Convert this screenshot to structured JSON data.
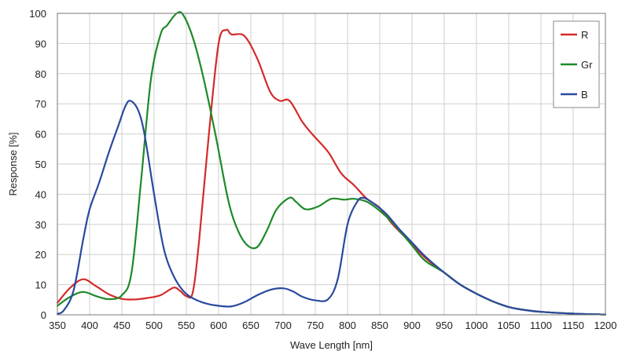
{
  "chart_data": {
    "type": "line",
    "title": "",
    "xlabel": "Wave Length [nm]",
    "ylabel": "Response  [%]",
    "xlim": [
      350,
      1200
    ],
    "ylim": [
      0,
      100
    ],
    "x_ticks": [
      350,
      400,
      450,
      500,
      550,
      600,
      650,
      700,
      750,
      800,
      850,
      900,
      950,
      1000,
      1050,
      1100,
      1150,
      1200
    ],
    "y_ticks": [
      0,
      10,
      20,
      30,
      40,
      50,
      60,
      70,
      80,
      90,
      100
    ],
    "grid": true,
    "legend_position": "top-right",
    "series": [
      {
        "name": "R",
        "color": "#d42a2a",
        "points": [
          [
            350,
            4
          ],
          [
            370,
            9
          ],
          [
            390,
            11.8
          ],
          [
            410,
            9.5
          ],
          [
            430,
            6.8
          ],
          [
            450,
            5.3
          ],
          [
            470,
            5.1
          ],
          [
            490,
            5.6
          ],
          [
            510,
            6.5
          ],
          [
            530,
            9
          ],
          [
            540,
            8
          ],
          [
            550,
            6.2
          ],
          [
            560,
            7.5
          ],
          [
            570,
            25
          ],
          [
            585,
            60
          ],
          [
            600,
            90
          ],
          [
            612,
            94.5
          ],
          [
            620,
            93
          ],
          [
            640,
            92.5
          ],
          [
            660,
            85
          ],
          [
            680,
            74
          ],
          [
            695,
            71
          ],
          [
            710,
            71
          ],
          [
            730,
            64
          ],
          [
            745,
            60
          ],
          [
            770,
            54
          ],
          [
            790,
            47
          ],
          [
            810,
            43
          ],
          [
            830,
            38.5
          ],
          [
            850,
            35.5
          ],
          [
            870,
            30
          ],
          [
            900,
            23.5
          ],
          [
            920,
            19
          ],
          [
            950,
            14
          ],
          [
            975,
            10
          ],
          [
            1000,
            7
          ],
          [
            1025,
            4.5
          ],
          [
            1050,
            2.6
          ],
          [
            1075,
            1.6
          ],
          [
            1100,
            1
          ],
          [
            1150,
            0.4
          ],
          [
            1200,
            0.1
          ]
        ]
      },
      {
        "name": "Gr",
        "color": "#1e8a28",
        "points": [
          [
            350,
            3
          ],
          [
            370,
            6
          ],
          [
            390,
            7.6
          ],
          [
            410,
            6.2
          ],
          [
            430,
            5.2
          ],
          [
            450,
            6.5
          ],
          [
            465,
            14
          ],
          [
            480,
            45
          ],
          [
            495,
            78
          ],
          [
            510,
            93
          ],
          [
            520,
            96
          ],
          [
            535,
            100
          ],
          [
            545,
            99.5
          ],
          [
            560,
            92
          ],
          [
            575,
            80
          ],
          [
            595,
            60
          ],
          [
            615,
            38
          ],
          [
            630,
            28
          ],
          [
            645,
            23
          ],
          [
            660,
            22.5
          ],
          [
            675,
            28
          ],
          [
            690,
            35
          ],
          [
            710,
            38.8
          ],
          [
            720,
            37.5
          ],
          [
            735,
            35
          ],
          [
            755,
            36
          ],
          [
            775,
            38.5
          ],
          [
            795,
            38.2
          ],
          [
            810,
            38.5
          ],
          [
            830,
            37.5
          ],
          [
            850,
            34.5
          ],
          [
            870,
            30.5
          ],
          [
            900,
            23
          ],
          [
            920,
            18
          ],
          [
            950,
            14
          ],
          [
            975,
            10
          ],
          [
            1000,
            7
          ],
          [
            1025,
            4.5
          ],
          [
            1050,
            2.6
          ],
          [
            1075,
            1.6
          ],
          [
            1100,
            1
          ],
          [
            1150,
            0.4
          ],
          [
            1200,
            0.1
          ]
        ]
      },
      {
        "name": "B",
        "color": "#2a4a9e",
        "points": [
          [
            350,
            0.3
          ],
          [
            360,
            1.5
          ],
          [
            375,
            8
          ],
          [
            390,
            25
          ],
          [
            400,
            35
          ],
          [
            415,
            44
          ],
          [
            430,
            54
          ],
          [
            445,
            63
          ],
          [
            455,
            69
          ],
          [
            463,
            71
          ],
          [
            475,
            68
          ],
          [
            485,
            60
          ],
          [
            500,
            40
          ],
          [
            515,
            22
          ],
          [
            530,
            13
          ],
          [
            545,
            8
          ],
          [
            560,
            5.5
          ],
          [
            580,
            3.8
          ],
          [
            600,
            3
          ],
          [
            620,
            2.8
          ],
          [
            640,
            4.2
          ],
          [
            660,
            6.5
          ],
          [
            680,
            8.3
          ],
          [
            700,
            8.8
          ],
          [
            715,
            7.8
          ],
          [
            730,
            6
          ],
          [
            750,
            4.8
          ],
          [
            770,
            5.2
          ],
          [
            785,
            12
          ],
          [
            800,
            30
          ],
          [
            815,
            37.5
          ],
          [
            825,
            38.8
          ],
          [
            840,
            37
          ],
          [
            860,
            33.5
          ],
          [
            880,
            28.5
          ],
          [
            900,
            24
          ],
          [
            920,
            19.5
          ],
          [
            950,
            14
          ],
          [
            975,
            10
          ],
          [
            1000,
            7
          ],
          [
            1025,
            4.5
          ],
          [
            1050,
            2.6
          ],
          [
            1075,
            1.6
          ],
          [
            1100,
            1
          ],
          [
            1150,
            0.4
          ],
          [
            1200,
            0.1
          ]
        ]
      }
    ]
  }
}
